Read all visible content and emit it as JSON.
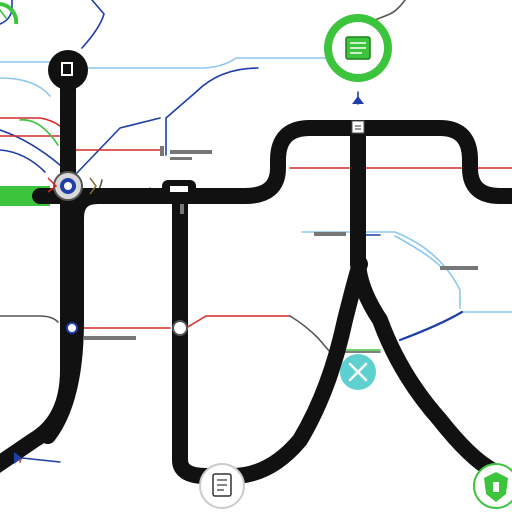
{
  "diagram": {
    "background": "#ffffff",
    "colors": {
      "trunk": "#111111",
      "accent_green": "#3cc43c",
      "accent_blue": "#1e3fa8",
      "accent_light_blue": "#8cc8ee",
      "accent_red": "#d42a2a",
      "accent_gray": "#9a9a9a",
      "accent_teal": "#5fd0d0"
    },
    "nodes": [
      {
        "id": "top-left-terminal",
        "icon": "square-icon",
        "style": "dark"
      },
      {
        "id": "top-green-station",
        "icon": "document-icon",
        "style": "green-ring"
      },
      {
        "id": "upper-left-junction",
        "icon": "junction-icon",
        "style": "blue-dot"
      },
      {
        "id": "central-branch-label",
        "icon": "label-icon",
        "style": "dark-tag"
      },
      {
        "id": "left-mid-station",
        "icon": "dot-icon",
        "style": "small"
      },
      {
        "id": "center-mid-station",
        "icon": "dot-icon",
        "style": "small"
      },
      {
        "id": "teal-station",
        "icon": "tools-icon",
        "style": "teal"
      },
      {
        "id": "bottom-center-station",
        "icon": "document-icon",
        "style": "gray-ring"
      },
      {
        "id": "bottom-right-station",
        "icon": "shield-icon",
        "style": "green-outline"
      }
    ]
  }
}
